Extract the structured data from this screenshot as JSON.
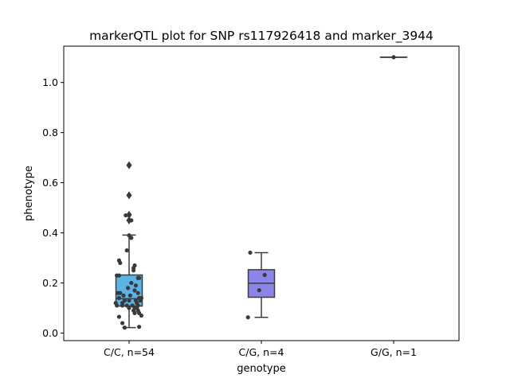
{
  "chart_data": {
    "type": "box",
    "title": "markerQTL plot for SNP rs117926418 and marker_3944",
    "xlabel": "genotype",
    "ylabel": "phenotype",
    "ylim": [
      -0.03,
      1.145
    ],
    "yticks": [
      "0.0",
      "0.2",
      "0.4",
      "0.6",
      "0.8",
      "1.0"
    ],
    "grid": false,
    "legend": "none",
    "categories": [
      "C/C, n=54",
      "C/G, n=4",
      "G/G, n=1"
    ],
    "boxes": [
      {
        "category": "C/C, n=54",
        "color": "#5ab4e6",
        "q1": 0.108,
        "median": 0.137,
        "q3": 0.232,
        "whisker_low": 0.022,
        "whisker_high": 0.391,
        "outliers": [
          0.45,
          0.472,
          0.55,
          0.67
        ]
      },
      {
        "category": "C/G, n=4",
        "color": "#8c84e6",
        "q1": 0.143,
        "median": 0.199,
        "q3": 0.253,
        "whisker_low": 0.063,
        "whisker_high": 0.321,
        "outliers": []
      },
      {
        "category": "G/G, n=1",
        "color": "#bcbcbc",
        "q1": 1.101,
        "median": 1.101,
        "q3": 1.101,
        "whisker_low": 1.101,
        "whisker_high": 1.101,
        "outliers": []
      }
    ],
    "points": [
      {
        "category": "C/C, n=54",
        "values": [
          0.67,
          0.55,
          0.47,
          0.47,
          0.45,
          0.45,
          0.39,
          0.38,
          0.33,
          0.29,
          0.28,
          0.27,
          0.26,
          0.25,
          0.23,
          0.23,
          0.22,
          0.22,
          0.2,
          0.19,
          0.18,
          0.17,
          0.16,
          0.16,
          0.16,
          0.15,
          0.15,
          0.14,
          0.14,
          0.14,
          0.13,
          0.13,
          0.13,
          0.13,
          0.12,
          0.12,
          0.12,
          0.11,
          0.11,
          0.11,
          0.11,
          0.11,
          0.1,
          0.1,
          0.1,
          0.09,
          0.09,
          0.08,
          0.08,
          0.07,
          0.065,
          0.04,
          0.025,
          0.022
        ],
        "jitter": [
          0.0,
          0.0,
          -0.03,
          0.0,
          0.0,
          0.02,
          0.0,
          0.02,
          -0.02,
          -0.09,
          -0.08,
          0.05,
          0.04,
          0.04,
          -0.09,
          -0.11,
          0.09,
          0.08,
          0.02,
          0.06,
          -0.01,
          0.05,
          -0.1,
          0.08,
          -0.08,
          -0.05,
          0.01,
          -0.09,
          0.09,
          0.11,
          -0.04,
          0.06,
          0.0,
          0.1,
          -0.12,
          -0.06,
          0.07,
          -0.11,
          0.03,
          -0.06,
          0.08,
          -0.02,
          0.0,
          0.05,
          0.07,
          0.04,
          0.08,
          0.05,
          0.09,
          0.11,
          -0.09,
          -0.06,
          0.09,
          -0.04
        ]
      },
      {
        "category": "C/G, n=4",
        "values": [
          0.321,
          0.232,
          0.171,
          0.063
        ],
        "jitter": [
          -0.1,
          0.03,
          -0.02,
          -0.12
        ]
      },
      {
        "category": "G/G, n=1",
        "values": [
          1.101
        ],
        "jitter": [
          0.0
        ]
      }
    ]
  }
}
